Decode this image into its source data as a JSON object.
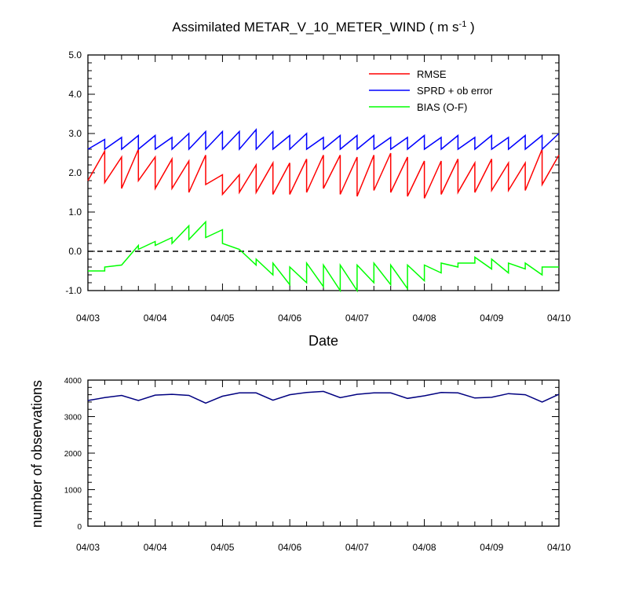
{
  "chart_data": [
    {
      "type": "line",
      "title": "Assimilated METAR_V_10_METER_WIND ( m s",
      "title_superscript": "-1",
      "title_tail": " )",
      "xlabel": "Date",
      "ylabel": "",
      "x_tick_labels": [
        "04/03",
        "04/04",
        "04/05",
        "04/06",
        "04/07",
        "04/08",
        "04/09",
        "04/10"
      ],
      "y_tick_labels": [
        "-1.0",
        "0.0",
        "1.0",
        "2.0",
        "3.0",
        "4.0",
        "5.0"
      ],
      "xlim_days": [
        0,
        7
      ],
      "ylim": [
        -1.0,
        5.0
      ],
      "zero_line": "dashed",
      "legend_position": "top-right",
      "series": [
        {
          "name": "RMSE",
          "color": "#ff0000",
          "x": [
            0,
            0.25,
            0.25,
            0.5,
            0.5,
            0.75,
            0.75,
            1,
            1,
            1.25,
            1.25,
            1.5,
            1.5,
            1.75,
            1.75,
            2,
            2,
            2.25,
            2.25,
            2.5,
            2.5,
            2.75,
            2.75,
            3,
            3,
            3.25,
            3.25,
            3.5,
            3.5,
            3.75,
            3.75,
            4,
            4,
            4.25,
            4.25,
            4.5,
            4.5,
            4.75,
            4.75,
            5,
            5,
            5.25,
            5.25,
            5.5,
            5.5,
            5.75,
            5.75,
            6,
            6,
            6.25,
            6.25,
            6.5,
            6.5,
            6.75,
            6.75,
            7
          ],
          "y": [
            1.8,
            2.55,
            1.75,
            2.4,
            1.6,
            2.6,
            1.8,
            2.4,
            1.6,
            2.35,
            1.6,
            2.3,
            1.5,
            2.45,
            1.7,
            1.95,
            1.45,
            1.95,
            1.5,
            2.2,
            1.5,
            2.25,
            1.45,
            2.25,
            1.45,
            2.35,
            1.5,
            2.45,
            1.6,
            2.45,
            1.45,
            2.4,
            1.4,
            2.45,
            1.55,
            2.5,
            1.5,
            2.4,
            1.4,
            2.3,
            1.35,
            2.3,
            1.45,
            2.35,
            1.5,
            2.25,
            1.5,
            2.35,
            1.55,
            2.25,
            1.55,
            2.25,
            1.55,
            2.6,
            1.7,
            2.45
          ]
        },
        {
          "name": "SPRD + ob error",
          "color": "#0000ff",
          "x": [
            0,
            0.25,
            0.25,
            0.5,
            0.5,
            0.75,
            0.75,
            1,
            1,
            1.25,
            1.25,
            1.5,
            1.5,
            1.75,
            1.75,
            2,
            2,
            2.25,
            2.25,
            2.5,
            2.5,
            2.75,
            2.75,
            3,
            3,
            3.25,
            3.25,
            3.5,
            3.5,
            3.75,
            3.75,
            4,
            4,
            4.25,
            4.25,
            4.5,
            4.5,
            4.75,
            4.75,
            5,
            5,
            5.25,
            5.25,
            5.5,
            5.5,
            5.75,
            5.75,
            6,
            6,
            6.25,
            6.25,
            6.5,
            6.5,
            6.75,
            6.75,
            7
          ],
          "y": [
            2.6,
            2.85,
            2.6,
            2.9,
            2.6,
            2.95,
            2.6,
            2.95,
            2.6,
            2.9,
            2.6,
            3.0,
            2.6,
            3.05,
            2.6,
            3.05,
            2.6,
            3.05,
            2.6,
            3.1,
            2.6,
            3.05,
            2.6,
            2.95,
            2.6,
            3.0,
            2.6,
            2.9,
            2.6,
            2.95,
            2.6,
            2.95,
            2.6,
            2.95,
            2.6,
            2.9,
            2.6,
            2.9,
            2.6,
            2.95,
            2.6,
            2.9,
            2.6,
            2.95,
            2.6,
            2.9,
            2.6,
            2.95,
            2.6,
            2.9,
            2.6,
            2.95,
            2.6,
            2.95,
            2.6,
            3.0
          ]
        },
        {
          "name": "BIAS (O-F)",
          "color": "#00ff00",
          "x": [
            0,
            0.25,
            0.25,
            0.5,
            0.5,
            0.75,
            0.75,
            1,
            1,
            1.25,
            1.25,
            1.5,
            1.5,
            1.75,
            1.75,
            2,
            2,
            2.25,
            2.25,
            2.5,
            2.5,
            2.75,
            2.75,
            3,
            3,
            3.25,
            3.25,
            3.5,
            3.5,
            3.75,
            3.75,
            4,
            4,
            4.25,
            4.25,
            4.5,
            4.5,
            4.75,
            4.75,
            5,
            5,
            5.25,
            5.25,
            5.5,
            5.5,
            5.75,
            5.75,
            6,
            6,
            6.25,
            6.25,
            6.5,
            6.5,
            6.75,
            6.75,
            7
          ],
          "y": [
            -0.5,
            -0.5,
            -0.4,
            -0.35,
            -0.35,
            0.15,
            0.05,
            0.25,
            0.15,
            0.35,
            0.2,
            0.65,
            0.3,
            0.75,
            0.35,
            0.55,
            0.2,
            0.05,
            0.05,
            -0.35,
            -0.2,
            -0.6,
            -0.3,
            -0.85,
            -0.4,
            -0.8,
            -0.3,
            -0.9,
            -0.35,
            -1.0,
            -0.35,
            -1.0,
            -0.35,
            -0.8,
            -0.3,
            -0.85,
            -0.35,
            -0.95,
            -0.35,
            -0.75,
            -0.35,
            -0.55,
            -0.3,
            -0.4,
            -0.3,
            -0.3,
            -0.15,
            -0.45,
            -0.2,
            -0.55,
            -0.3,
            -0.45,
            -0.3,
            -0.6,
            -0.4,
            -0.4
          ]
        }
      ]
    },
    {
      "type": "line",
      "title": "",
      "xlabel": "",
      "ylabel": "number of observations",
      "x_tick_labels": [
        "04/03",
        "04/04",
        "04/05",
        "04/06",
        "04/07",
        "04/08",
        "04/09",
        "04/10"
      ],
      "y_tick_labels": [
        "0",
        "1000",
        "2000",
        "3000",
        "4000"
      ],
      "xlim_days": [
        0,
        7
      ],
      "ylim": [
        0,
        4000
      ],
      "series": [
        {
          "color": "#000080",
          "x": [
            0,
            0.25,
            0.5,
            0.75,
            1,
            1.25,
            1.5,
            1.75,
            2,
            2.25,
            2.5,
            2.75,
            3,
            3.25,
            3.5,
            3.75,
            4,
            4.25,
            4.5,
            4.75,
            5,
            5.25,
            5.5,
            5.75,
            6,
            6.25,
            6.5,
            6.75,
            7
          ],
          "y": [
            3440,
            3520,
            3580,
            3440,
            3590,
            3610,
            3580,
            3370,
            3560,
            3650,
            3650,
            3450,
            3600,
            3660,
            3690,
            3520,
            3610,
            3650,
            3650,
            3500,
            3570,
            3660,
            3650,
            3510,
            3530,
            3630,
            3600,
            3400,
            3610
          ]
        }
      ]
    }
  ]
}
